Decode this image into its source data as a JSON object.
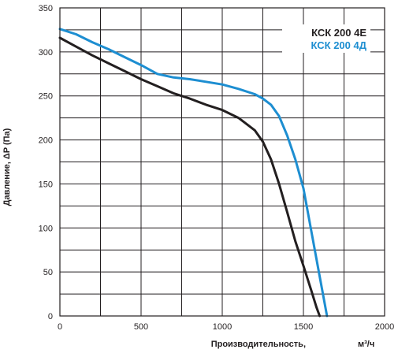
{
  "chart_data": {
    "type": "line",
    "title": "",
    "xlabel": "Производительность,",
    "xlabel_unit": "м³/ч",
    "ylabel": "Давление, ΔP (Па)",
    "xlim": [
      0,
      2000
    ],
    "ylim": [
      0,
      350
    ],
    "x_ticks": [
      "0",
      "500",
      "1000",
      "1500",
      "2000"
    ],
    "y_ticks": [
      "0",
      "50",
      "100",
      "150",
      "200",
      "250",
      "300",
      "350"
    ],
    "x_minor_step": 250,
    "y_minor_step": 25,
    "grid": true,
    "legend_position": "top-right",
    "series": [
      {
        "name": "КСК 200 4Е",
        "color": "#231f20",
        "points": [
          [
            0,
            316
          ],
          [
            100,
            306
          ],
          [
            200,
            296
          ],
          [
            300,
            287
          ],
          [
            400,
            278
          ],
          [
            500,
            269
          ],
          [
            600,
            261
          ],
          [
            700,
            253
          ],
          [
            800,
            247
          ],
          [
            900,
            240
          ],
          [
            1000,
            234
          ],
          [
            1100,
            225
          ],
          [
            1200,
            211
          ],
          [
            1250,
            198
          ],
          [
            1300,
            178
          ],
          [
            1350,
            150
          ],
          [
            1400,
            118
          ],
          [
            1450,
            85
          ],
          [
            1500,
            57
          ],
          [
            1550,
            28
          ],
          [
            1580,
            10
          ],
          [
            1600,
            0
          ]
        ]
      },
      {
        "name": "КСК 200 4Д",
        "color": "#1d8ed1",
        "points": [
          [
            0,
            326
          ],
          [
            100,
            320
          ],
          [
            200,
            311
          ],
          [
            300,
            303
          ],
          [
            400,
            294
          ],
          [
            500,
            285
          ],
          [
            600,
            275
          ],
          [
            700,
            271
          ],
          [
            800,
            269
          ],
          [
            900,
            266
          ],
          [
            1000,
            263
          ],
          [
            1100,
            258
          ],
          [
            1200,
            252
          ],
          [
            1250,
            247
          ],
          [
            1300,
            240
          ],
          [
            1350,
            227
          ],
          [
            1400,
            205
          ],
          [
            1450,
            178
          ],
          [
            1500,
            145
          ],
          [
            1550,
            95
          ],
          [
            1600,
            45
          ],
          [
            1630,
            15
          ],
          [
            1645,
            0
          ]
        ]
      }
    ]
  }
}
